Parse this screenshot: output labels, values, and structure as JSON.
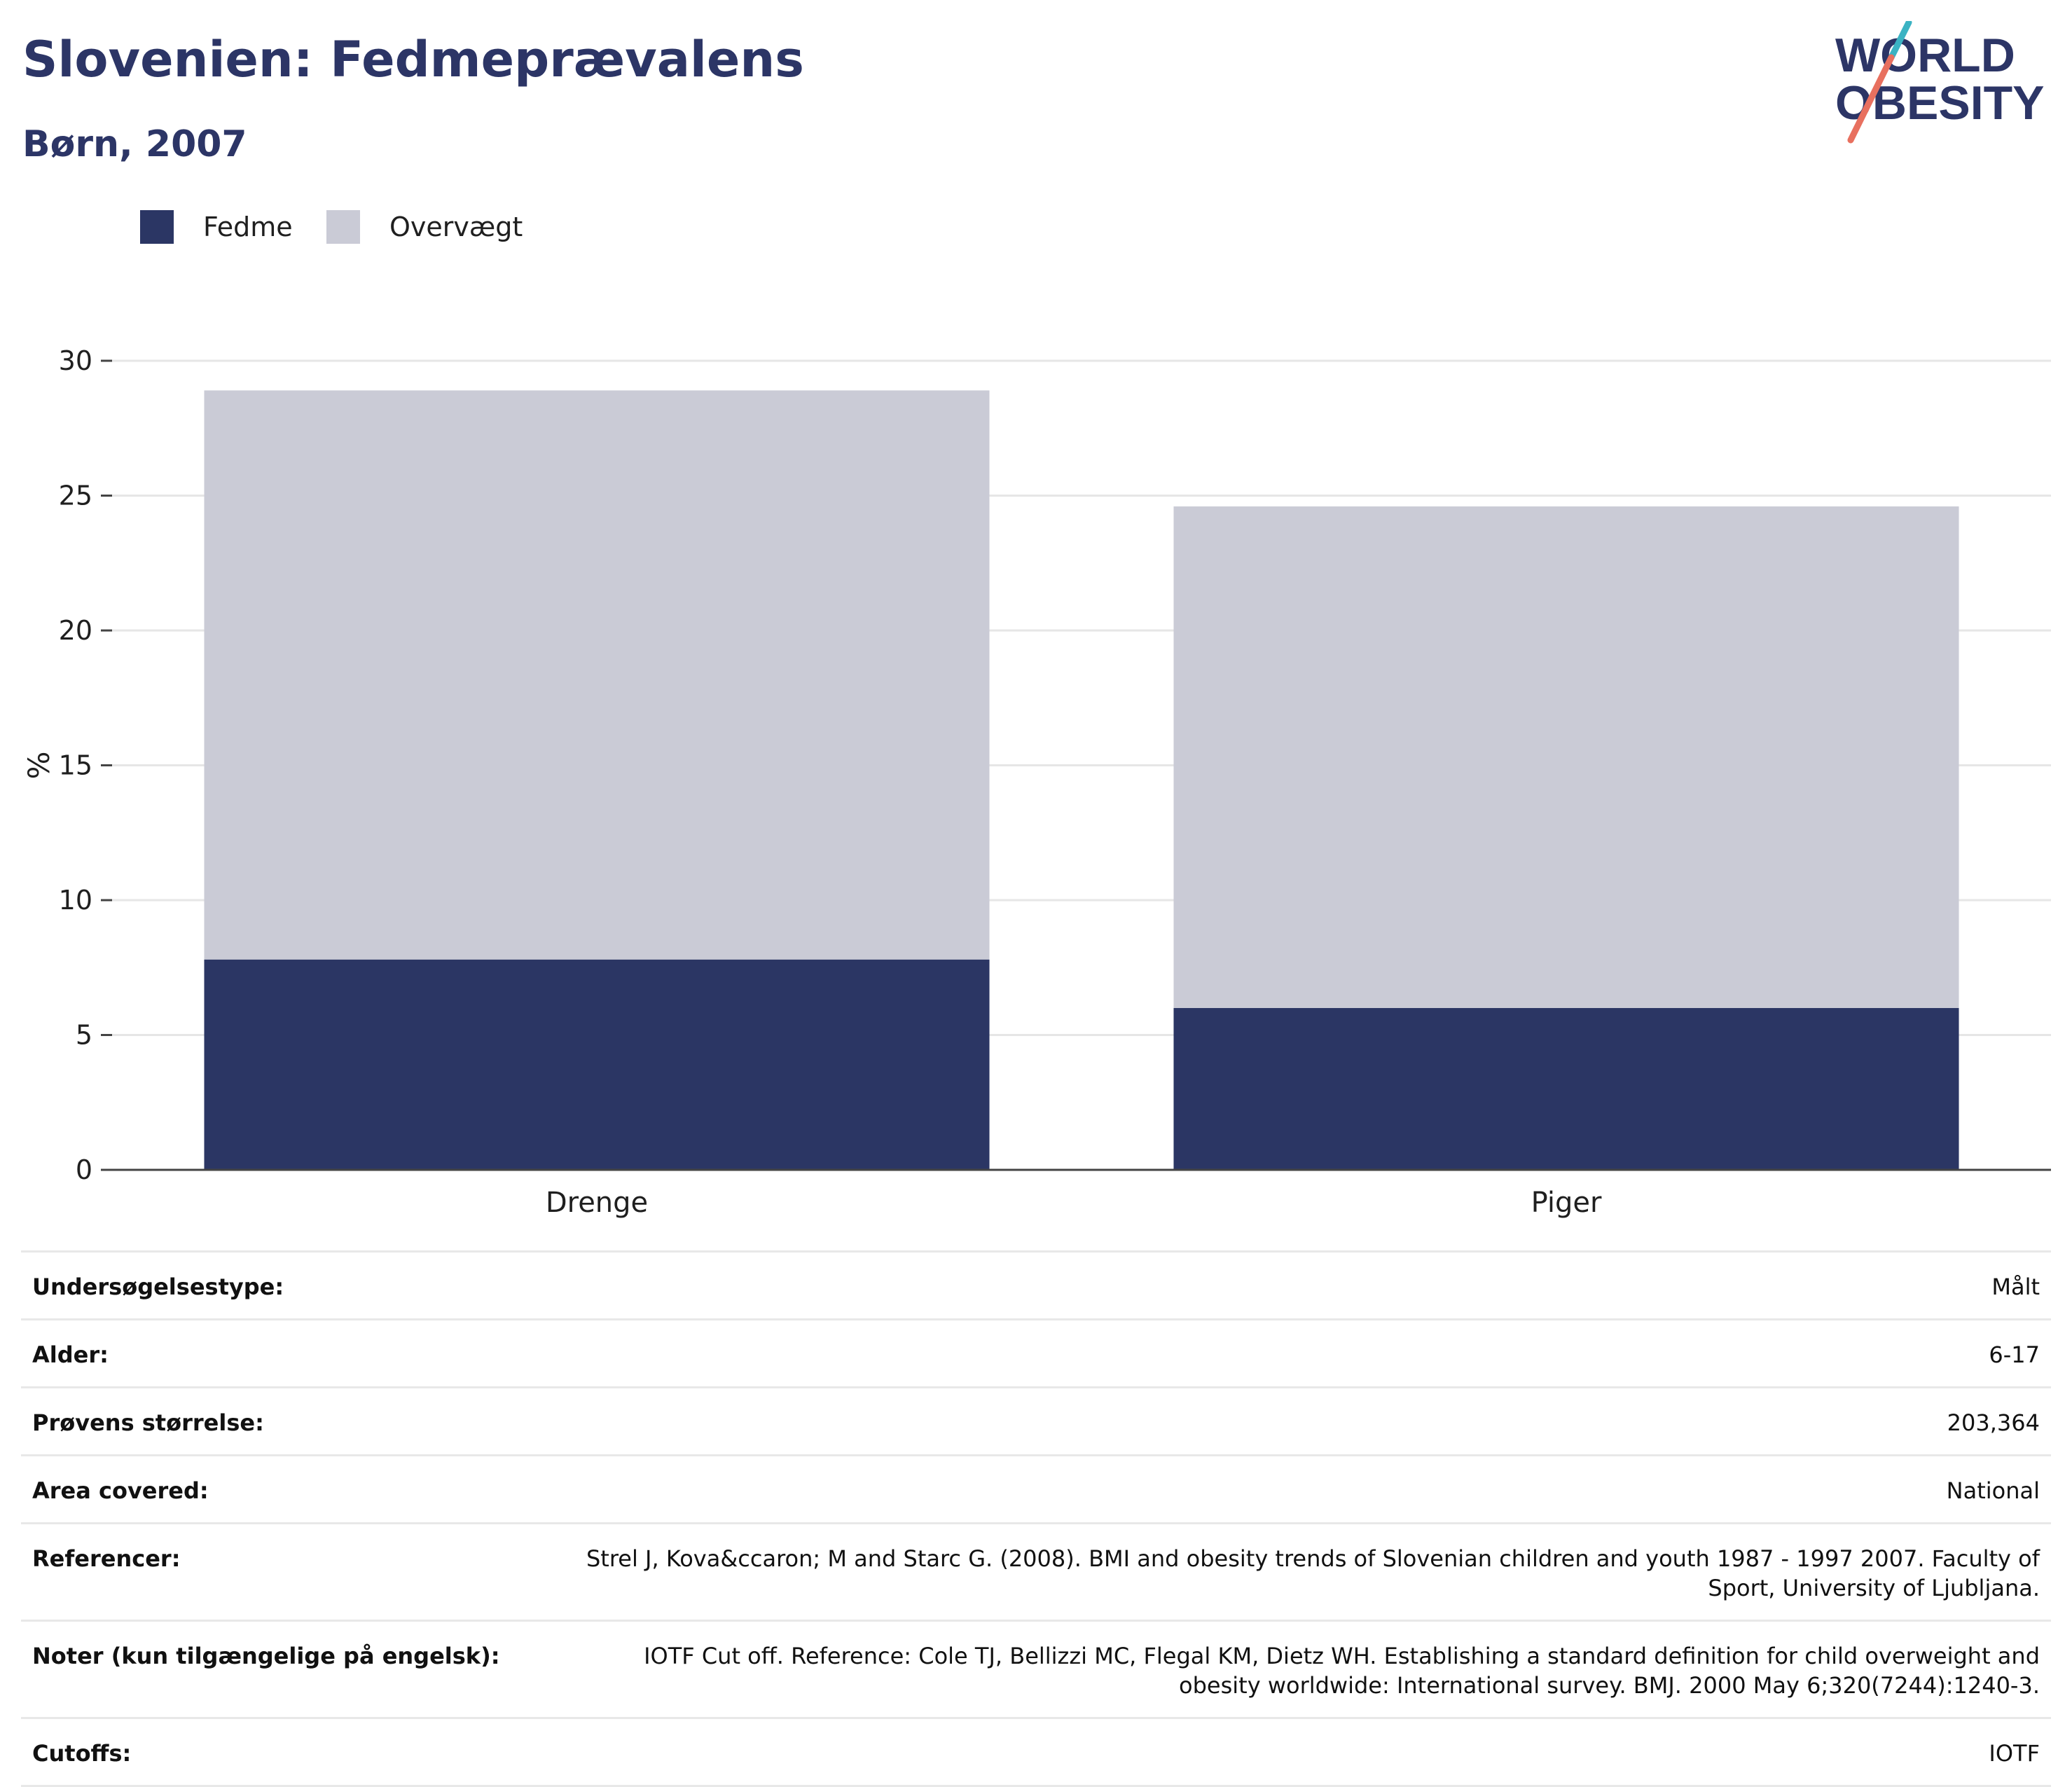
{
  "header": {
    "title": "Slovenien: Fedmeprævalens",
    "subtitle": "Børn, 2007"
  },
  "logo": {
    "line1": "WORLD",
    "line2": "OBESITY",
    "colors": {
      "text": "#2c3566",
      "slash_teal": "#3bb3c3",
      "slash_coral": "#e8705f"
    }
  },
  "colors": {
    "fedme": "#2b3664",
    "overvaegt": "#cacbd6",
    "grid": "#e6e6e6",
    "axis": "#444444"
  },
  "chart_data": {
    "type": "bar",
    "stacked": true,
    "categories": [
      "Drenge",
      "Piger"
    ],
    "series": [
      {
        "name": "Fedme",
        "values": [
          7.8,
          6.0
        ]
      },
      {
        "name": "Overvægt",
        "values": [
          21.1,
          18.6
        ]
      }
    ],
    "ylabel": "%",
    "ylim": [
      0,
      30
    ],
    "yticks": [
      0,
      5,
      10,
      15,
      20,
      25,
      30
    ],
    "grid": true,
    "legend_position": "top-left"
  },
  "info": [
    {
      "label": "Undersøgelsestype:",
      "value": "Målt"
    },
    {
      "label": "Alder:",
      "value": "6-17"
    },
    {
      "label": "Prøvens størrelse:",
      "value": "203,364"
    },
    {
      "label": "Area covered:",
      "value": "National"
    },
    {
      "label": "Referencer:",
      "value": "Strel J, Kova&ccaron; M and Starc G. (2008). BMI and obesity trends of Slovenian children and youth 1987 - 1997 2007. Faculty of Sport, University of Ljubljana."
    },
    {
      "label": "Noter (kun tilgængelige på engelsk):",
      "value": "IOTF Cut off. Reference: Cole TJ, Bellizzi MC, Flegal KM, Dietz WH. Establishing a standard definition for child overweight and obesity worldwide: International survey. BMJ. 2000 May 6;320(7244):1240-3."
    },
    {
      "label": "Cutoffs:",
      "value": "IOTF"
    }
  ]
}
